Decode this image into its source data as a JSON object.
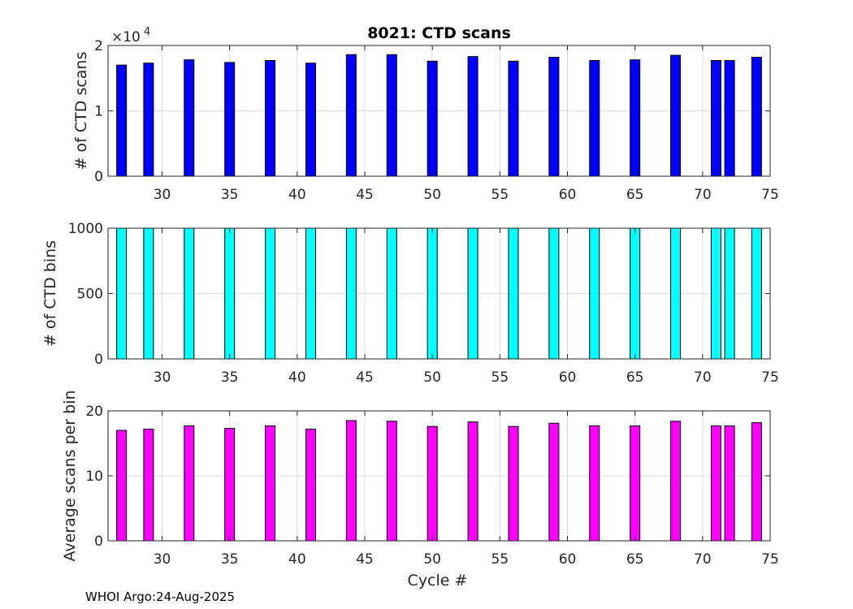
{
  "chart_data": [
    {
      "type": "bar",
      "title": "8021: CTD scans",
      "xlabel": "",
      "ylabel": "# of CTD scans",
      "exponent_label": "×10",
      "exponent_power": "4",
      "color": "#0000ff",
      "xlim": [
        26,
        75
      ],
      "ylim": [
        0,
        20000
      ],
      "yticks": [
        0,
        10000,
        20000
      ],
      "ytick_labels": [
        "0",
        "1",
        "2"
      ],
      "xticks": [
        30,
        35,
        40,
        45,
        50,
        55,
        60,
        65,
        70,
        75
      ],
      "x": [
        27,
        29,
        32,
        35,
        38,
        41,
        44,
        47,
        50,
        53,
        56,
        59,
        62,
        65,
        68,
        71,
        72,
        74
      ],
      "values": [
        17000,
        17300,
        17800,
        17400,
        17700,
        17300,
        18600,
        18600,
        17600,
        18300,
        17600,
        18200,
        17700,
        17800,
        18500,
        17700,
        17700,
        18200
      ]
    },
    {
      "type": "bar",
      "title": "",
      "xlabel": "",
      "ylabel": "# of CTD bins",
      "color": "#00ffff",
      "xlim": [
        26,
        75
      ],
      "ylim": [
        0,
        1000
      ],
      "yticks": [
        0,
        500,
        1000
      ],
      "ytick_labels": [
        "0",
        "500",
        "1000"
      ],
      "xticks": [
        30,
        35,
        40,
        45,
        50,
        55,
        60,
        65,
        70,
        75
      ],
      "x": [
        27,
        29,
        32,
        35,
        38,
        41,
        44,
        47,
        50,
        53,
        56,
        59,
        62,
        65,
        68,
        71,
        72,
        74
      ],
      "values": [
        1000,
        1000,
        1000,
        1000,
        1000,
        1000,
        1000,
        1000,
        1000,
        1000,
        1000,
        1000,
        1000,
        1000,
        1000,
        1000,
        1000,
        1000
      ]
    },
    {
      "type": "bar",
      "title": "",
      "xlabel": "Cycle #",
      "ylabel": "Average scans per bin",
      "color": "#ff00ff",
      "xlim": [
        26,
        75
      ],
      "ylim": [
        0,
        20
      ],
      "yticks": [
        0,
        10,
        20
      ],
      "ytick_labels": [
        "0",
        "10",
        "20"
      ],
      "xticks": [
        30,
        35,
        40,
        45,
        50,
        55,
        60,
        65,
        70,
        75
      ],
      "x": [
        27,
        29,
        32,
        35,
        38,
        41,
        44,
        47,
        50,
        53,
        56,
        59,
        62,
        65,
        68,
        71,
        72,
        74
      ],
      "values": [
        17.0,
        17.2,
        17.7,
        17.3,
        17.7,
        17.2,
        18.5,
        18.4,
        17.6,
        18.3,
        17.6,
        18.1,
        17.7,
        17.7,
        18.4,
        17.7,
        17.7,
        18.2
      ]
    }
  ],
  "footer": "WHOI Argo:24-Aug-2025"
}
